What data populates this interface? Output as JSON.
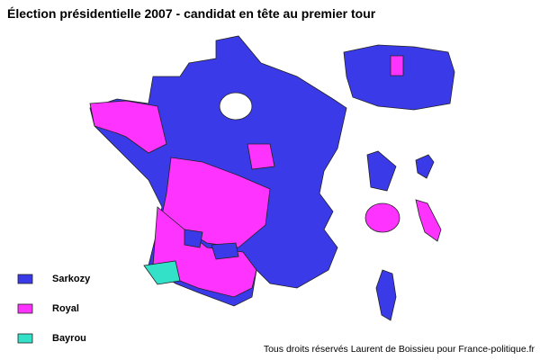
{
  "title": "Élection présidentielle 2007 - candidat en tête au premier tour",
  "legend": [
    {
      "name": "Sarkozy",
      "color": "#3a3ae8"
    },
    {
      "name": "Royal",
      "color": "#ff33ff"
    },
    {
      "name": "Bayrou",
      "color": "#33e0c8"
    }
  ],
  "credit": "Tous droits réservés Laurent de Boissieu pour France-politique.fr"
}
